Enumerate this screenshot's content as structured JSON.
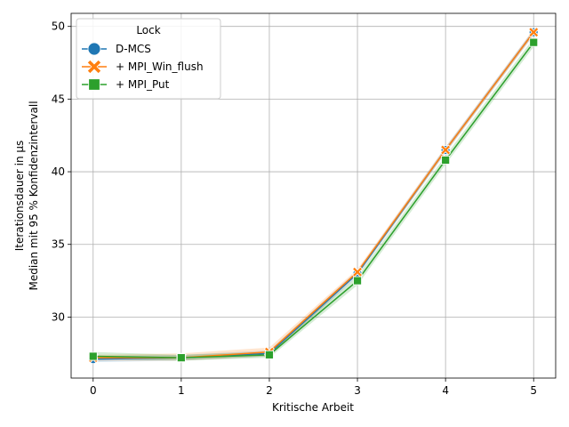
{
  "chart_data": {
    "type": "line",
    "title": "",
    "xlabel": "Kritische Arbeit",
    "ylabel_lines": [
      "Iterationsdauer in µs",
      "Median mit 95 % Konfidenzintervall"
    ],
    "x": [
      0,
      1,
      2,
      3,
      4,
      5
    ],
    "xlim": [
      -0.25,
      5.25
    ],
    "ylim": [
      25.8,
      50.9
    ],
    "xticks": [
      0,
      1,
      2,
      3,
      4,
      5
    ],
    "yticks": [
      30,
      35,
      40,
      45,
      50
    ],
    "grid": true,
    "legend": {
      "title": "Lock",
      "placement": "top-left"
    },
    "series": [
      {
        "name": "D-MCS",
        "color": "#1f77b4",
        "marker": "circle",
        "values": [
          27.1,
          27.2,
          27.5,
          33.0,
          41.5,
          49.6
        ],
        "ci_low": [
          26.9,
          27.0,
          27.3,
          32.8,
          41.3,
          49.4
        ],
        "ci_high": [
          27.3,
          27.4,
          27.7,
          33.2,
          41.7,
          49.8
        ]
      },
      {
        "name": "+ MPI_Win_flush",
        "color": "#ff7f0e",
        "marker": "x",
        "values": [
          27.2,
          27.2,
          27.6,
          33.1,
          41.5,
          49.6
        ],
        "ci_low": [
          27.0,
          27.0,
          27.3,
          32.9,
          41.3,
          49.4
        ],
        "ci_high": [
          27.4,
          27.5,
          27.9,
          33.3,
          41.7,
          49.8
        ]
      },
      {
        "name": "+ MPI_Put",
        "color": "#2ca02c",
        "marker": "square",
        "values": [
          27.3,
          27.2,
          27.4,
          32.5,
          40.8,
          48.9
        ],
        "ci_low": [
          27.1,
          27.0,
          27.2,
          32.2,
          40.5,
          48.6
        ],
        "ci_high": [
          27.6,
          27.4,
          27.6,
          32.8,
          41.1,
          49.2
        ]
      }
    ]
  }
}
